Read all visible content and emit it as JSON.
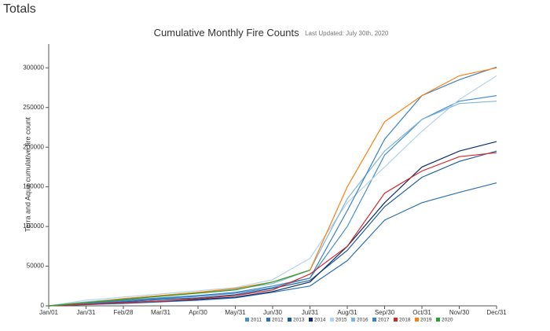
{
  "heading": "Totals",
  "chart_data": {
    "type": "line",
    "title": "Cumulative Monthly Fire Counts",
    "subtitle": "Last Updated: July 30th, 2020",
    "y_label": "Terra and Aqua cumulative fire count",
    "categories": [
      "Jan/01",
      "Jan/31",
      "Feb/28",
      "Mar/31",
      "Apr/30",
      "May/31",
      "Jun/30",
      "Jul/31",
      "Aug/31",
      "Sep/30",
      "Oct/31",
      "Nov/30",
      "Dec/31"
    ],
    "ylim": [
      0,
      330000
    ],
    "yticks": [
      0,
      50000,
      100000,
      150000,
      200000,
      250000,
      300000
    ],
    "series": [
      {
        "name": "2011",
        "color": "#4a90c8",
        "values": [
          0,
          3000,
          6000,
          9000,
          12000,
          16000,
          23000,
          35000,
          100000,
          190000,
          235000,
          258000,
          265000
        ]
      },
      {
        "name": "2012",
        "color": "#2f72b0",
        "values": [
          0,
          1500,
          3000,
          5000,
          7000,
          10000,
          17000,
          25000,
          57000,
          108000,
          130000,
          143000,
          155000
        ]
      },
      {
        "name": "2013",
        "color": "#1f5e9c",
        "values": [
          0,
          2000,
          5000,
          8000,
          10000,
          14000,
          22000,
          32000,
          70000,
          125000,
          162000,
          182000,
          195000
        ]
      },
      {
        "name": "2014",
        "color": "#0e2f6b",
        "values": [
          0,
          2000,
          4000,
          6000,
          8000,
          11000,
          18000,
          30000,
          75000,
          130000,
          175000,
          195000,
          207000
        ]
      },
      {
        "name": "2015",
        "color": "#b3d4ea",
        "values": [
          0,
          7000,
          11000,
          15000,
          19000,
          23000,
          33000,
          60000,
          130000,
          175000,
          220000,
          260000,
          290000
        ]
      },
      {
        "name": "2016",
        "color": "#7fb6dc",
        "values": [
          0,
          5000,
          9000,
          13000,
          17000,
          21000,
          28000,
          45000,
          135000,
          195000,
          235000,
          255000,
          258000
        ]
      },
      {
        "name": "2017",
        "color": "#3c82c2",
        "values": [
          0,
          3000,
          7000,
          10000,
          13000,
          17000,
          25000,
          35000,
          120000,
          210000,
          265000,
          285000,
          301000
        ]
      },
      {
        "name": "2018",
        "color": "#d62728",
        "values": [
          0,
          2000,
          4000,
          6000,
          9000,
          13000,
          20000,
          40000,
          75000,
          142000,
          170000,
          188000,
          193000
        ]
      },
      {
        "name": "2019",
        "color": "#ff7f0e",
        "values": [
          0,
          4000,
          9000,
          13000,
          17000,
          22000,
          30000,
          45000,
          150000,
          232000,
          265000,
          290000,
          300000
        ]
      },
      {
        "name": "2020",
        "color": "#2ca02c",
        "values": [
          0,
          4000,
          8000,
          12000,
          16000,
          20000,
          30000,
          45000,
          null,
          null,
          null,
          null,
          null
        ]
      }
    ]
  }
}
